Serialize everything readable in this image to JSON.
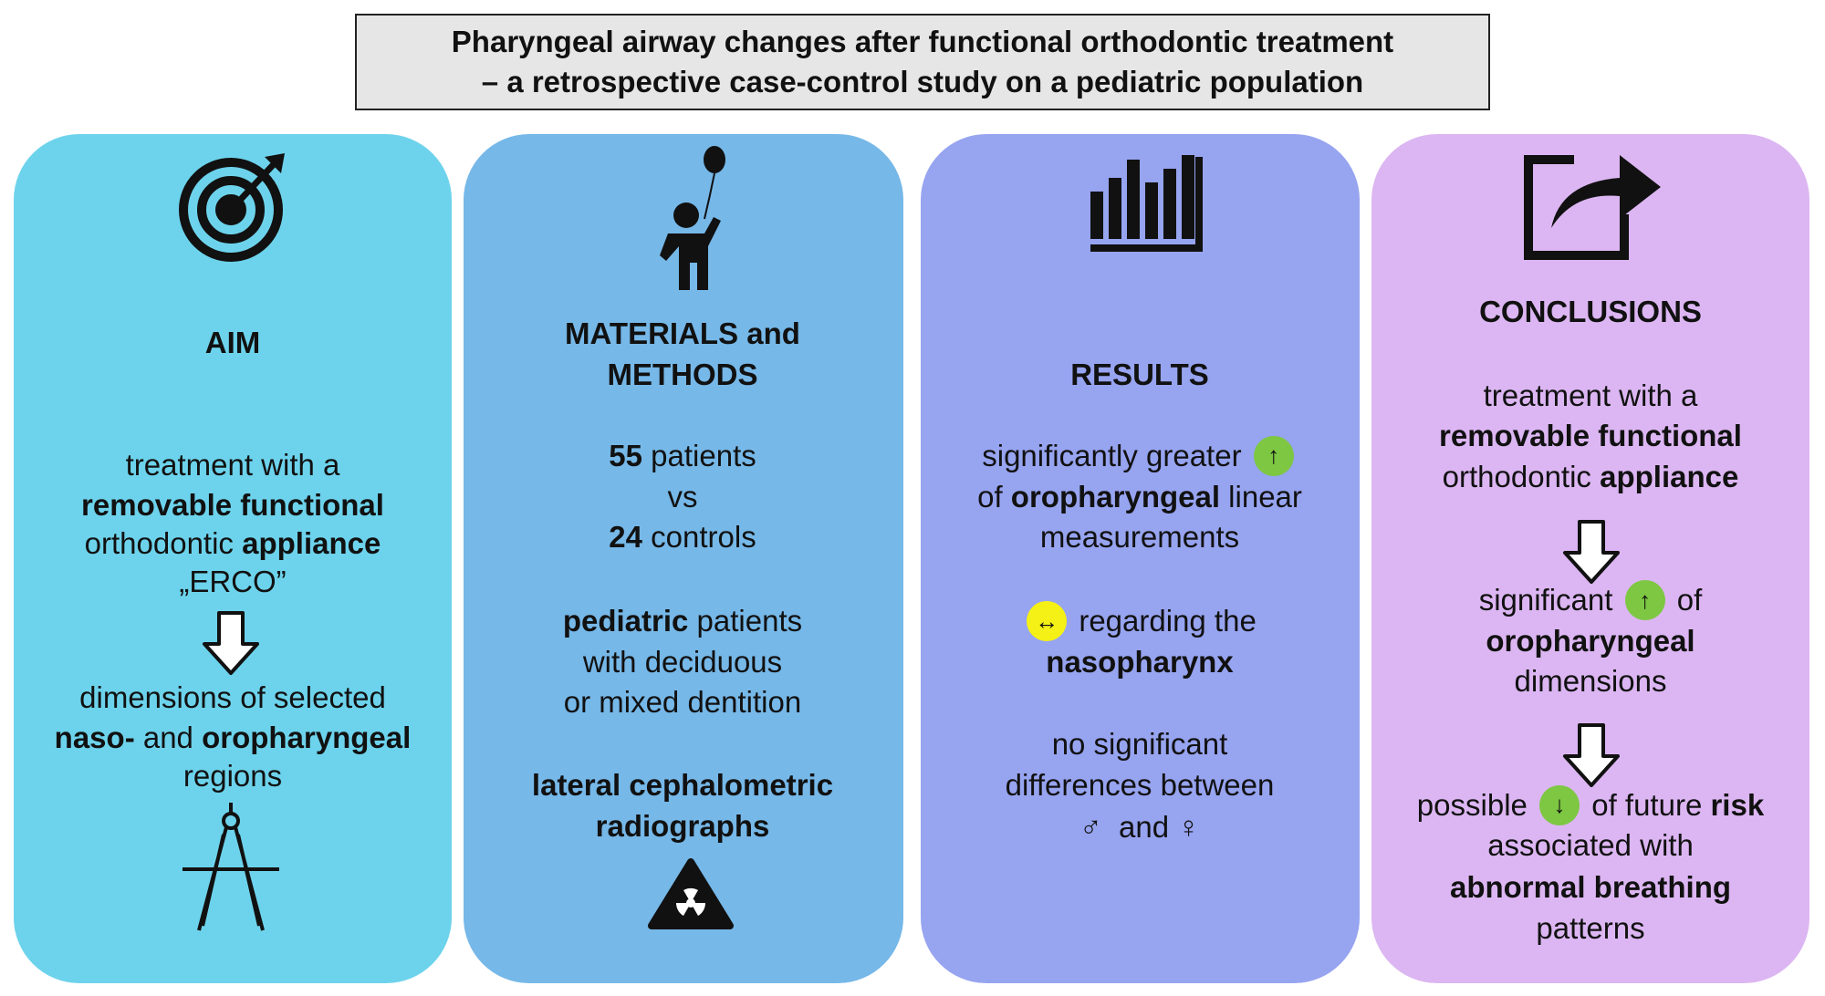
{
  "title": [
    "Pharyngeal airway changes after functional orthodontic treatment",
    "– a retrospective case-control study on a pediatric population"
  ],
  "panels": [
    {
      "color": "#6dd3ec",
      "heading": [
        "AIM"
      ],
      "lines": [
        [
          "treatment with a"
        ],
        [
          {
            "text": "removable functional",
            "bold": true
          }
        ],
        [
          "orthodontic ",
          {
            "text": "appliance",
            "bold": true
          }
        ],
        [
          "„ERCO”"
        ],
        [
          "dimensions of selected"
        ],
        [
          {
            "text": "naso-",
            "bold": true
          },
          " and ",
          {
            "text": "oropharyngeal",
            "bold": true
          }
        ],
        [
          "regions"
        ]
      ]
    },
    {
      "color": "#76b8e8",
      "heading": [
        "MATERIALS and",
        "METHODS"
      ],
      "lines": [
        [
          {
            "text": "55",
            "bold": true
          },
          " patients"
        ],
        [
          "vs"
        ],
        [
          {
            "text": "24",
            "bold": true
          },
          " controls"
        ],
        [
          {
            "text": "pediatric",
            "bold": true
          },
          " patients"
        ],
        [
          "with deciduous"
        ],
        [
          "or mixed dentition"
        ],
        [
          {
            "text": "lateral cephalometric",
            "bold": true
          }
        ],
        [
          {
            "text": "radiographs",
            "bold": true
          }
        ]
      ]
    },
    {
      "color": "#97a4f0",
      "heading": [
        "RESULTS"
      ],
      "lines": [
        [
          "significantly greater ",
          {
            "text": "↑",
            "badge": "#7dc742"
          }
        ],
        [
          "of ",
          {
            "text": "oropharyngeal",
            "bold": true
          },
          " linear"
        ],
        [
          "measurements"
        ],
        [
          {
            "text": "↔",
            "badge": "#f5f016"
          },
          " regarding the"
        ],
        [
          {
            "text": "nasopharynx",
            "bold": true
          }
        ],
        [
          "no significant"
        ],
        [
          "differences between"
        ],
        [
          "♂  and ♀"
        ]
      ]
    },
    {
      "color": "#dcb6f2",
      "heading": [
        "CONCLUSIONS"
      ],
      "lines": [
        [
          "treatment with a"
        ],
        [
          {
            "text": "removable functional",
            "bold": true
          }
        ],
        [
          "orthodontic ",
          {
            "text": "appliance",
            "bold": true
          }
        ],
        [
          "significant ",
          {
            "text": "↑",
            "badge": "#7dc742"
          },
          " of"
        ],
        [
          {
            "text": "oropharyngeal",
            "bold": true
          }
        ],
        [
          "dimensions"
        ],
        [
          "possible ",
          {
            "text": "↓",
            "badge": "#7dc742"
          },
          " of future ",
          {
            "text": "risk",
            "bold": true
          }
        ],
        [
          "associated with"
        ],
        [
          {
            "text": "abnormal breathing",
            "bold": true
          }
        ],
        [
          "patterns"
        ]
      ]
    }
  ]
}
